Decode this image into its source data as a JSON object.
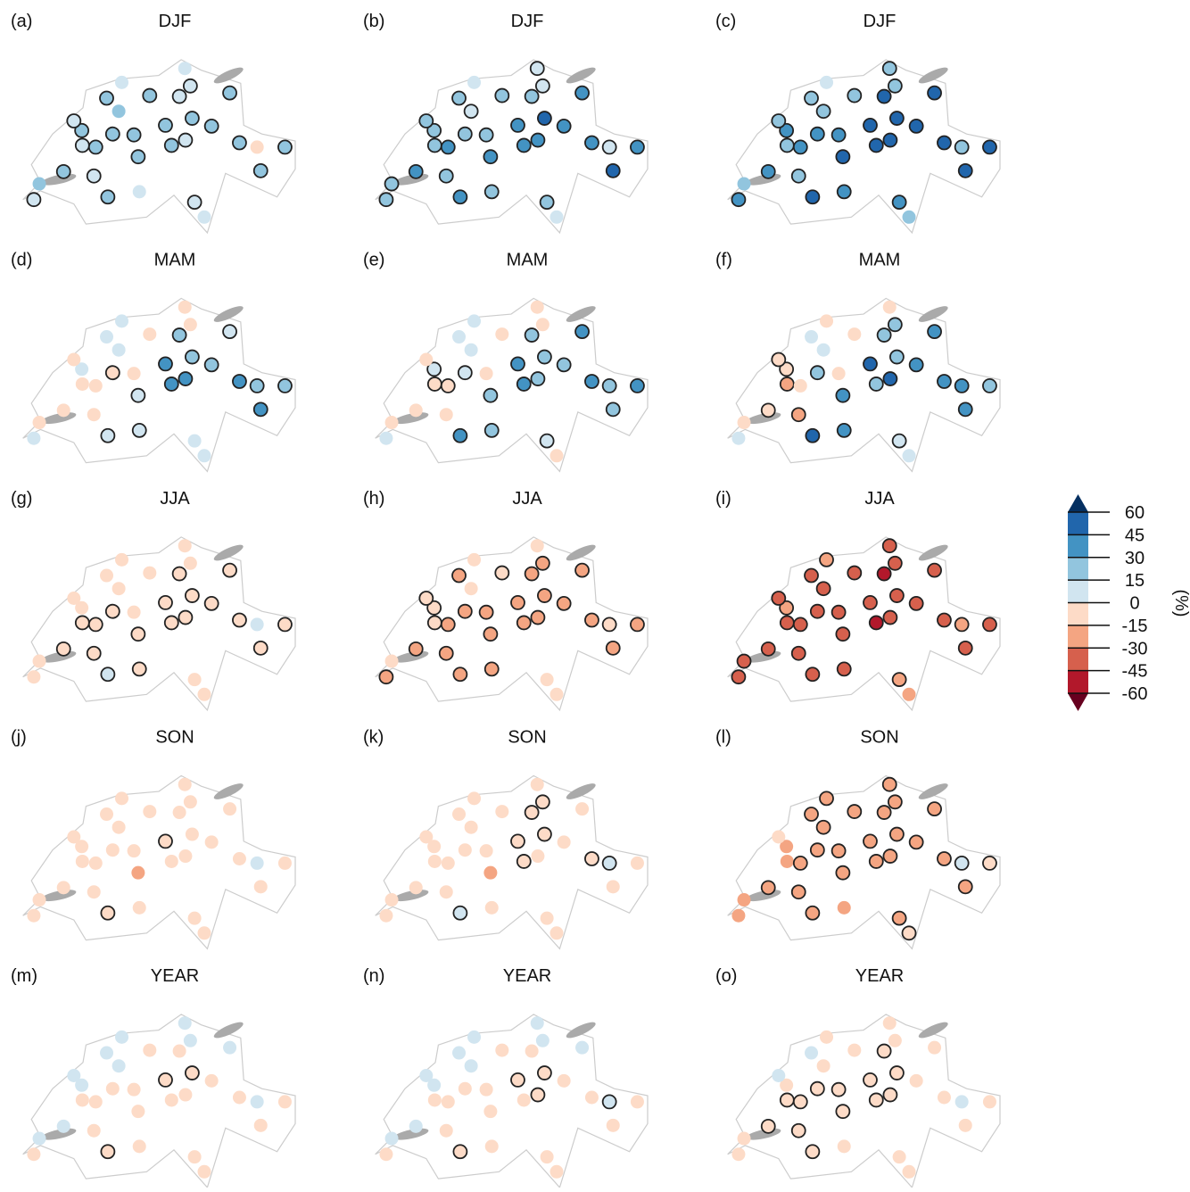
{
  "station_lon": [
    6.14,
    6.23,
    6.63,
    6.94,
    6.93,
    6.8,
    7.34,
    7.59,
    7.44,
    7.16,
    7.13,
    7.36,
    7.88,
    7.86,
    7.79,
    7.54,
    8.05,
    8.31,
    8.54,
    8.63,
    8.72,
    9.37,
    8.75,
    9.07,
    8.64,
    8.41,
    9.53,
    9.82,
    10.28,
    9.88,
    8.79,
    8.95
  ],
  "station_lat": [
    46.2,
    46.38,
    46.52,
    46.82,
    46.99,
    47.1,
    47.36,
    47.54,
    46.95,
    46.8,
    46.47,
    46.23,
    46.29,
    46.69,
    46.94,
    47.21,
    47.39,
    47.05,
    47.38,
    47.7,
    47.5,
    47.42,
    47.13,
    47.04,
    46.88,
    46.82,
    46.85,
    46.8,
    46.8,
    46.53,
    46.17,
    46.0
  ],
  "panels": [
    {
      "label": "(a)",
      "title": "DJF",
      "values": [
        10,
        20,
        20,
        10,
        20,
        10,
        20,
        10,
        20,
        20,
        10,
        20,
        10,
        20,
        20,
        20,
        20,
        20,
        10,
        10,
        10,
        20,
        20,
        20,
        10,
        20,
        20,
        -10,
        20,
        20,
        10,
        10
      ],
      "sig": [
        1,
        0,
        1,
        1,
        1,
        1,
        1,
        0,
        1,
        1,
        1,
        1,
        0,
        1,
        1,
        0,
        1,
        1,
        1,
        0,
        1,
        1,
        1,
        1,
        1,
        1,
        1,
        0,
        1,
        1,
        1,
        0
      ]
    },
    {
      "label": "(b)",
      "title": "DJF",
      "values": [
        20,
        20,
        35,
        20,
        20,
        20,
        20,
        10,
        20,
        35,
        20,
        40,
        20,
        35,
        20,
        10,
        20,
        35,
        25,
        10,
        10,
        35,
        50,
        35,
        35,
        40,
        40,
        10,
        40,
        50,
        25,
        10
      ],
      "sig": [
        1,
        1,
        1,
        1,
        1,
        1,
        1,
        0,
        1,
        1,
        1,
        1,
        1,
        1,
        1,
        1,
        1,
        1,
        1,
        1,
        1,
        1,
        1,
        1,
        1,
        1,
        1,
        1,
        1,
        1,
        1,
        0
      ]
    },
    {
      "label": "(c)",
      "title": "DJF",
      "values": [
        35,
        20,
        35,
        25,
        35,
        20,
        20,
        10,
        35,
        35,
        20,
        50,
        35,
        50,
        35,
        20,
        25,
        50,
        50,
        20,
        20,
        50,
        55,
        50,
        50,
        50,
        50,
        25,
        50,
        55,
        35,
        20
      ],
      "sig": [
        1,
        0,
        1,
        1,
        1,
        1,
        1,
        0,
        1,
        1,
        1,
        1,
        1,
        1,
        1,
        1,
        1,
        1,
        1,
        1,
        1,
        1,
        1,
        1,
        1,
        1,
        1,
        1,
        1,
        1,
        1,
        0
      ]
    },
    {
      "label": "(d)",
      "title": "MAM",
      "values": [
        10,
        -5,
        -5,
        -5,
        10,
        -5,
        10,
        10,
        -5,
        -5,
        -5,
        10,
        10,
        10,
        -5,
        10,
        -5,
        35,
        20,
        -5,
        -5,
        10,
        20,
        20,
        35,
        35,
        35,
        20,
        20,
        35,
        10,
        10
      ],
      "sig": [
        0,
        0,
        0,
        0,
        0,
        0,
        0,
        0,
        1,
        0,
        0,
        1,
        1,
        1,
        0,
        0,
        0,
        1,
        1,
        0,
        0,
        1,
        1,
        1,
        1,
        1,
        1,
        1,
        1,
        1,
        0,
        0
      ]
    },
    {
      "label": "(e)",
      "title": "MAM",
      "values": [
        10,
        -5,
        -5,
        -5,
        10,
        -5,
        10,
        10,
        10,
        -5,
        -5,
        40,
        20,
        20,
        -5,
        10,
        -5,
        35,
        20,
        -5,
        -5,
        35,
        20,
        20,
        20,
        35,
        35,
        20,
        35,
        20,
        10,
        -5
      ],
      "sig": [
        0,
        0,
        0,
        1,
        1,
        0,
        0,
        0,
        1,
        1,
        0,
        1,
        1,
        1,
        0,
        0,
        0,
        1,
        1,
        0,
        0,
        1,
        1,
        1,
        1,
        1,
        1,
        1,
        1,
        1,
        1,
        0
      ]
    },
    {
      "label": "(f)",
      "title": "MAM",
      "values": [
        10,
        -5,
        -10,
        -20,
        -10,
        -10,
        10,
        -5,
        20,
        -5,
        -20,
        50,
        35,
        35,
        -5,
        10,
        -5,
        50,
        20,
        -5,
        20,
        35,
        20,
        35,
        50,
        20,
        40,
        35,
        20,
        35,
        10,
        10
      ],
      "sig": [
        0,
        0,
        1,
        1,
        1,
        1,
        0,
        0,
        1,
        0,
        1,
        1,
        1,
        1,
        0,
        0,
        0,
        1,
        1,
        0,
        1,
        1,
        1,
        1,
        1,
        1,
        1,
        1,
        1,
        1,
        1,
        0
      ]
    },
    {
      "label": "(g)",
      "title": "JJA",
      "values": [
        -10,
        -5,
        -5,
        -5,
        -5,
        -5,
        -10,
        -5,
        -10,
        -10,
        -5,
        10,
        -5,
        -5,
        -10,
        -5,
        -5,
        -10,
        -10,
        -5,
        -5,
        -10,
        -10,
        -10,
        -5,
        -10,
        -10,
        10,
        -10,
        -10,
        -5,
        -5
      ],
      "sig": [
        0,
        0,
        1,
        1,
        0,
        0,
        0,
        0,
        1,
        1,
        1,
        1,
        1,
        1,
        0,
        0,
        0,
        1,
        1,
        0,
        0,
        1,
        1,
        1,
        1,
        1,
        1,
        0,
        1,
        1,
        0,
        0
      ]
    },
    {
      "label": "(h)",
      "title": "JJA",
      "values": [
        -20,
        -10,
        -20,
        -10,
        -10,
        -10,
        -25,
        -10,
        -20,
        -20,
        -20,
        -20,
        -20,
        -20,
        -20,
        -10,
        -10,
        -20,
        -25,
        -10,
        -25,
        -20,
        -25,
        -20,
        -20,
        -25,
        -25,
        -10,
        -20,
        -20,
        -10,
        -10
      ],
      "sig": [
        1,
        0,
        1,
        1,
        1,
        1,
        1,
        0,
        1,
        1,
        1,
        1,
        1,
        1,
        1,
        0,
        1,
        1,
        1,
        0,
        1,
        1,
        1,
        1,
        1,
        1,
        1,
        1,
        1,
        1,
        0,
        0
      ]
    },
    {
      "label": "(i)",
      "title": "JJA",
      "values": [
        -30,
        -35,
        -40,
        -30,
        -25,
        -30,
        -30,
        -25,
        -35,
        -30,
        -40,
        -40,
        -35,
        -35,
        -35,
        -30,
        -30,
        -40,
        -45,
        -30,
        -35,
        -30,
        -40,
        -35,
        -35,
        -50,
        -35,
        -25,
        -30,
        -35,
        -20,
        -15
      ],
      "sig": [
        1,
        1,
        1,
        1,
        1,
        1,
        1,
        1,
        1,
        1,
        1,
        1,
        1,
        1,
        1,
        1,
        1,
        1,
        1,
        1,
        1,
        1,
        1,
        1,
        1,
        1,
        1,
        1,
        1,
        1,
        1,
        0
      ]
    },
    {
      "label": "(j)",
      "title": "SON",
      "values": [
        -5,
        -5,
        -5,
        -5,
        -5,
        -5,
        -5,
        -5,
        -10,
        -10,
        -5,
        -5,
        -5,
        -20,
        -5,
        -5,
        -5,
        -10,
        -5,
        -5,
        -5,
        -5,
        -10,
        -5,
        -5,
        -10,
        -5,
        5,
        -5,
        -5,
        -5,
        -5
      ],
      "sig": [
        0,
        0,
        0,
        0,
        0,
        0,
        0,
        0,
        0,
        0,
        0,
        1,
        0,
        0,
        0,
        0,
        0,
        1,
        0,
        0,
        0,
        0,
        0,
        0,
        0,
        0,
        0,
        0,
        0,
        0,
        0,
        0
      ]
    },
    {
      "label": "(k)",
      "title": "SON",
      "values": [
        -5,
        -5,
        -10,
        -5,
        -5,
        -5,
        -5,
        -5,
        -10,
        -10,
        -5,
        5,
        -5,
        -20,
        -5,
        -5,
        -5,
        -10,
        -10,
        -5,
        -5,
        -5,
        -10,
        -5,
        -10,
        -10,
        -10,
        5,
        -10,
        -5,
        -10,
        -5
      ],
      "sig": [
        0,
        0,
        0,
        0,
        0,
        0,
        0,
        0,
        0,
        0,
        0,
        1,
        0,
        0,
        0,
        0,
        0,
        1,
        1,
        0,
        1,
        0,
        1,
        0,
        0,
        1,
        1,
        1,
        0,
        0,
        0,
        0
      ]
    },
    {
      "label": "(l)",
      "title": "SON",
      "values": [
        -20,
        -20,
        -25,
        -20,
        -20,
        -10,
        -20,
        -20,
        -25,
        -25,
        -20,
        -20,
        -20,
        -25,
        -25,
        -20,
        -20,
        -25,
        -25,
        -25,
        -25,
        -20,
        -25,
        -20,
        -20,
        -25,
        -20,
        10,
        -10,
        -20,
        -15,
        -10
      ],
      "sig": [
        0,
        0,
        1,
        0,
        0,
        0,
        1,
        1,
        1,
        1,
        1,
        1,
        0,
        1,
        1,
        1,
        1,
        1,
        1,
        1,
        1,
        1,
        1,
        1,
        1,
        1,
        1,
        1,
        1,
        1,
        1,
        1
      ]
    },
    {
      "label": "(m)",
      "title": "YEAR",
      "values": [
        -5,
        5,
        5,
        -5,
        5,
        5,
        5,
        5,
        -5,
        -5,
        -5,
        -5,
        -5,
        -5,
        -5,
        5,
        -5,
        -5,
        -5,
        5,
        5,
        5,
        -5,
        -5,
        -5,
        -5,
        -5,
        5,
        -5,
        -5,
        -5,
        -5
      ],
      "sig": [
        0,
        0,
        0,
        0,
        0,
        0,
        0,
        0,
        0,
        0,
        0,
        1,
        0,
        0,
        0,
        0,
        0,
        1,
        0,
        0,
        0,
        0,
        1,
        0,
        0,
        0,
        0,
        0,
        0,
        0,
        0,
        0
      ]
    },
    {
      "label": "(n)",
      "title": "YEAR",
      "values": [
        -5,
        5,
        5,
        -5,
        5,
        5,
        5,
        5,
        -5,
        -5,
        -5,
        -5,
        -5,
        -5,
        -5,
        5,
        -5,
        -5,
        -5,
        5,
        5,
        5,
        -5,
        -5,
        -5,
        -5,
        -5,
        5,
        -5,
        -5,
        -5,
        -5
      ],
      "sig": [
        0,
        0,
        0,
        0,
        0,
        0,
        0,
        0,
        0,
        0,
        0,
        1,
        0,
        0,
        0,
        0,
        0,
        1,
        0,
        0,
        0,
        0,
        1,
        0,
        1,
        0,
        0,
        1,
        0,
        0,
        0,
        0
      ]
    },
    {
      "label": "(o)",
      "title": "YEAR",
      "values": [
        -5,
        -5,
        -10,
        -10,
        -5,
        5,
        5,
        -5,
        -10,
        -10,
        -10,
        -10,
        -5,
        -10,
        -10,
        -5,
        -5,
        -10,
        -10,
        -5,
        -5,
        -5,
        -10,
        -5,
        -10,
        -10,
        -5,
        5,
        -5,
        -5,
        -10,
        -5
      ],
      "sig": [
        0,
        0,
        1,
        1,
        0,
        0,
        0,
        0,
        1,
        1,
        1,
        1,
        0,
        1,
        1,
        0,
        0,
        1,
        1,
        0,
        0,
        0,
        1,
        0,
        1,
        1,
        0,
        0,
        0,
        0,
        0,
        0
      ]
    }
  ],
  "colorbar": {
    "ticks": [
      60,
      45,
      30,
      15,
      0,
      -15,
      -30,
      -45,
      -60
    ],
    "colors": [
      "#2166ac",
      "#4393c3",
      "#92c5de",
      "#d1e5f0",
      "#fddbc7",
      "#f4a582",
      "#d6604d",
      "#b2182b"
    ],
    "extend_colors": [
      "#053061",
      "#67001f"
    ],
    "label": "(%)"
  }
}
